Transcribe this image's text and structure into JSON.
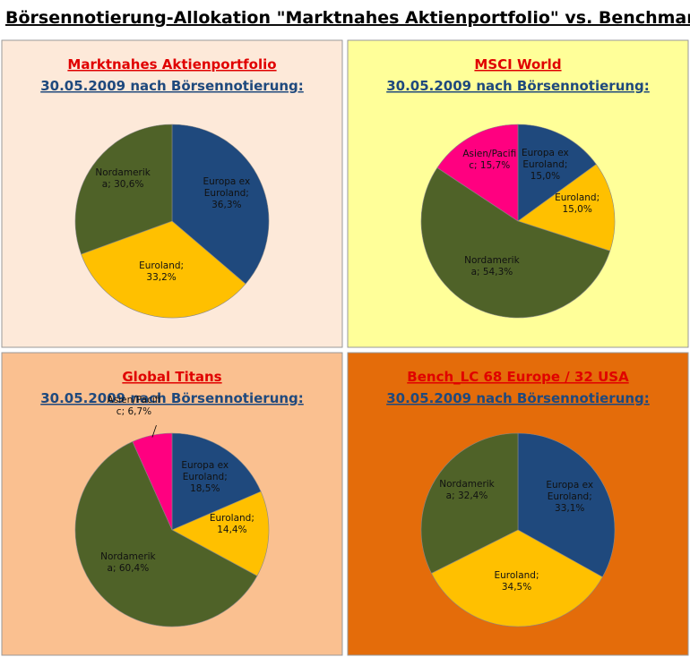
{
  "title": "Börsennotierung-Allokation \"Marktnahes Aktienportfolio\" vs. Benchmarks",
  "chart_data": [
    {
      "type": "pie",
      "title": "Marktnahes Aktienportfolio",
      "subtitle": "30.05.2009 nach Börsennotierung:",
      "background": "#fde9d9",
      "values": [
        36.3,
        33.2,
        30.6
      ],
      "value_labels": [
        "Europa ex Euroland; 36,3%",
        "Euroland; 33,2%",
        "Nordamerika; 30,6%"
      ],
      "colors": [
        "#1f497d",
        "#ffc000",
        "#4f6228"
      ]
    },
    {
      "type": "pie",
      "title": "MSCI World",
      "subtitle": "30.05.2009 nach Börsennotierung:",
      "background": "#ffff99",
      "values": [
        15.0,
        15.0,
        54.3,
        15.7
      ],
      "value_labels": [
        "Europa ex Euroland; 15,0%",
        "Euroland; 15,0%",
        "Nordamerika; 54,3%",
        "Asien/Pacific; 15,7%"
      ],
      "colors": [
        "#1f497d",
        "#ffc000",
        "#4f6228",
        "#ff0080"
      ]
    },
    {
      "type": "pie",
      "title": "Global Titans",
      "subtitle": "30.05.2009 nach Börsennotierung:",
      "background": "#fac090",
      "values": [
        18.5,
        14.4,
        60.4,
        6.7
      ],
      "value_labels": [
        "Europa ex Euroland; 18,5%",
        "Euroland; 14,4%",
        "Nordamerika; 60,4%",
        "Asien/Pacific; 6,7%"
      ],
      "colors": [
        "#1f497d",
        "#ffc000",
        "#4f6228",
        "#ff0080"
      ]
    },
    {
      "type": "pie",
      "title": "Bench_LC 68 Europe / 32 USA",
      "subtitle": "30.05.2009 nach Börsennotierung:",
      "background": "#e46c0a",
      "values": [
        33.1,
        34.5,
        32.4
      ],
      "value_labels": [
        "Europa ex Euroland; 33,1%",
        "Euroland; 34,5%",
        "Nordamerika; 32,4%"
      ],
      "colors": [
        "#1f497d",
        "#ffc000",
        "#4f6228"
      ]
    }
  ]
}
